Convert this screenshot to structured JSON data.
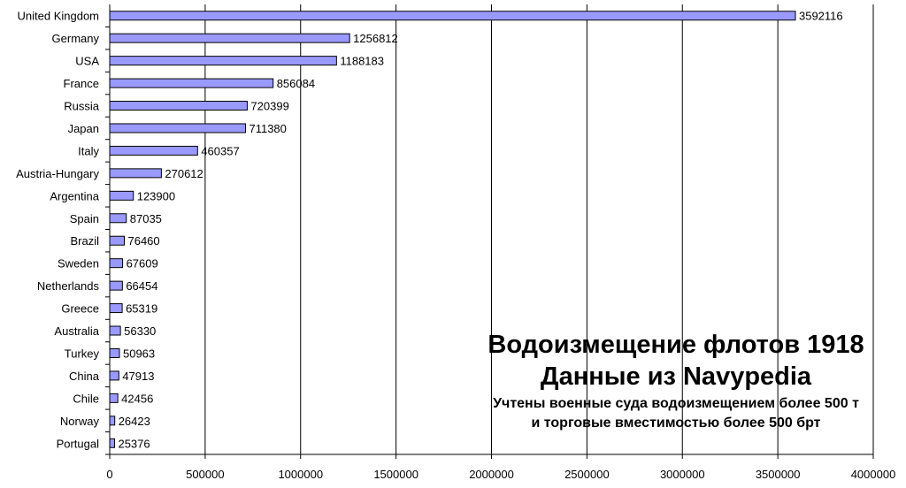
{
  "chart_data": {
    "type": "bar",
    "orientation": "horizontal",
    "categories": [
      "United Kingdom",
      "Germany",
      "USA",
      "France",
      "Russia",
      "Japan",
      "Italy",
      "Austria-Hungary",
      "Argentina",
      "Spain",
      "Brazil",
      "Sweden",
      "Netherlands",
      "Greece",
      "Australia",
      "Turkey",
      "China",
      "Chile",
      "Norway",
      "Portugal"
    ],
    "values": [
      3592116,
      1256812,
      1188183,
      856084,
      720399,
      711380,
      460357,
      270612,
      123900,
      87035,
      76460,
      67609,
      66454,
      65319,
      56330,
      50963,
      47913,
      42456,
      26423,
      25376
    ],
    "data_labels": [
      "3592116",
      "1256812",
      "1188183",
      "856084",
      "720399",
      "711380",
      "460357",
      "270612",
      "123900",
      "87035",
      "76460",
      "67609",
      "66454",
      "65319",
      "56330",
      "50963",
      "47913",
      "42456",
      "26423",
      "25376"
    ],
    "xticks": [
      "0",
      "500000",
      "1000000",
      "1500000",
      "2000000",
      "2500000",
      "3000000",
      "3500000",
      "4000000"
    ],
    "xlim": [
      0,
      4000000
    ],
    "title": "Водоизмещение флотов 1918",
    "subtitle": "Данные из Navypedia",
    "notes": [
      "Учтены военные суда водоизмещением более 500 т",
      "и торговые вместимостью более 500 брт"
    ],
    "xlabel": "",
    "ylabel": "",
    "grid": "vertical",
    "bar_color": "#9999ff",
    "bar_edge_color": "#000000"
  }
}
